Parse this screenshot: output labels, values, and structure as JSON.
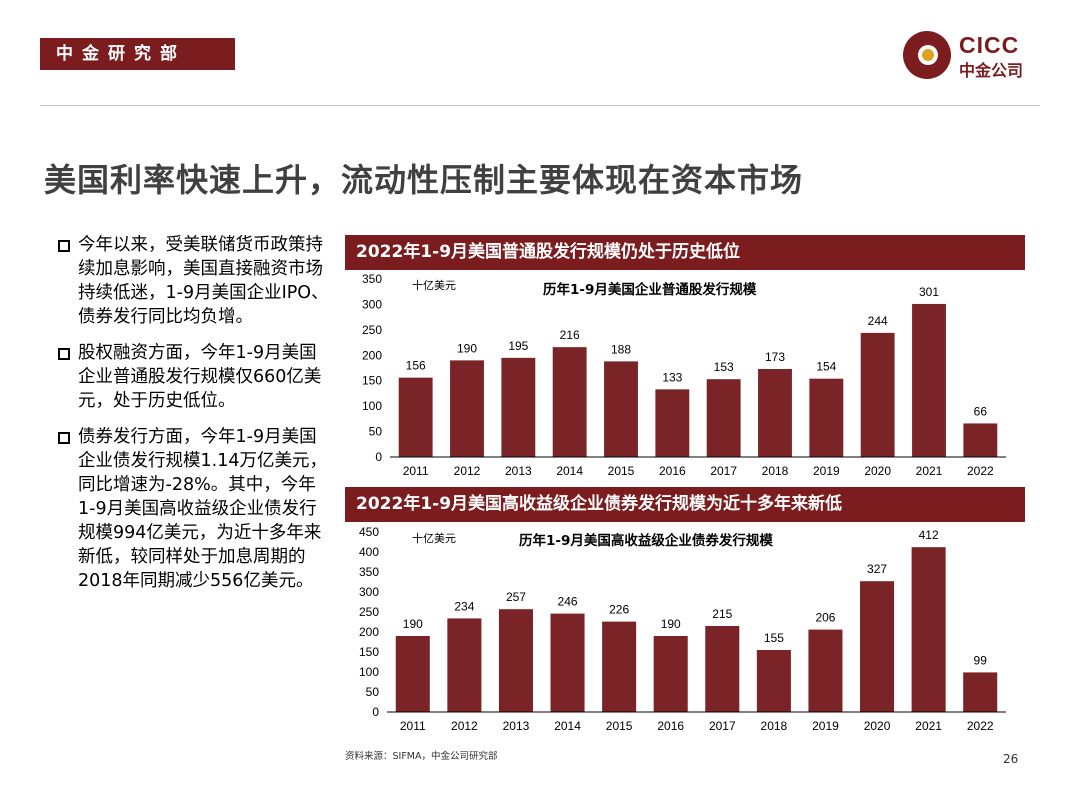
{
  "header": {
    "department": "中金研究部",
    "logo_text_en": "CICC",
    "logo_text_cn": "中金公司",
    "brand_color": "#7b1c1e"
  },
  "page_title": "美国利率快速上升，流动性压制主要体现在资本市场",
  "bullets": [
    "今年以来，受美联储货币政策持续加息影响，美国直接融资市场持续低迷，1-9月美国企业IPO、债券发行同比均负增。",
    "股权融资方面，今年1-9月美国企业普通股发行规模仅660亿美元，处于历史低位。",
    "债券发行方面，今年1-9月美国企业债发行规模1.14万亿美元，同比增速为-28%。其中，今年1-9月美国高收益级企业债发行规模994亿美元，为近十多年来新低，较同样处于加息周期的2018年同期减少556亿美元。"
  ],
  "section_titles": [
    "2022年1-9月美国普通股发行规模仍处于历史低位",
    "2022年1-9月美国高收益级企业债券发行规模为近十多年来新低"
  ],
  "chart_data": [
    {
      "type": "bar",
      "title": "历年1-9月美国企业普通股发行规模",
      "unit_label": "十亿美元",
      "categories": [
        "2011",
        "2012",
        "2013",
        "2014",
        "2015",
        "2016",
        "2017",
        "2018",
        "2019",
        "2020",
        "2021",
        "2022"
      ],
      "values": [
        156,
        190,
        195,
        216,
        188,
        133,
        153,
        173,
        154,
        244,
        301,
        66
      ],
      "y_ticks": [
        0,
        50,
        100,
        150,
        200,
        250,
        300,
        350
      ],
      "ylim": [
        0,
        350
      ],
      "bar_color": "#7b2428"
    },
    {
      "type": "bar",
      "title": "历年1-9月美国高收益级企业债券发行规模",
      "unit_label": "十亿美元",
      "categories": [
        "2011",
        "2012",
        "2013",
        "2014",
        "2015",
        "2016",
        "2017",
        "2018",
        "2019",
        "2020",
        "2021",
        "2022"
      ],
      "values": [
        190,
        234,
        257,
        246,
        226,
        190,
        215,
        155,
        206,
        327,
        412,
        99
      ],
      "y_ticks": [
        0,
        50,
        100,
        150,
        200,
        250,
        300,
        350,
        400,
        450
      ],
      "ylim": [
        0,
        450
      ],
      "bar_color": "#7b2428"
    }
  ],
  "footer": {
    "source": "资料来源：SIFMA，中金公司研究部",
    "page_number": "26"
  }
}
